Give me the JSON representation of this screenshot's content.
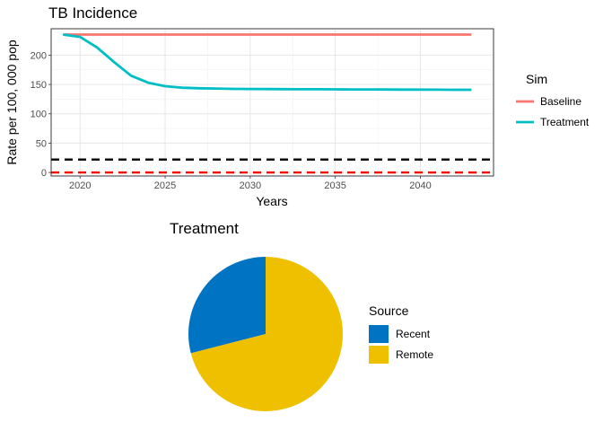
{
  "chart_data": [
    {
      "type": "line",
      "title": "TB Incidence",
      "xlabel": "Years",
      "ylabel": "Rate per 100, 000 pop",
      "xlim": [
        2018.3,
        2044.3
      ],
      "ylim": [
        -6,
        245
      ],
      "x_ticks": [
        2020,
        2025,
        2030,
        2035,
        2040
      ],
      "y_ticks": [
        0,
        50,
        100,
        150,
        200
      ],
      "grid": true,
      "legend": {
        "title": "Sim",
        "position": "right"
      },
      "series": [
        {
          "name": "Baseline",
          "color": "#F8766D",
          "x": [
            2019,
            2043
          ],
          "y": [
            235,
            235
          ]
        },
        {
          "name": "Treatment",
          "color": "#00BFC4",
          "x": [
            2019,
            2020,
            2021,
            2022,
            2023,
            2024,
            2025,
            2026,
            2027,
            2028,
            2029,
            2030,
            2031,
            2032,
            2033,
            2034,
            2035,
            2036,
            2037,
            2038,
            2039,
            2040,
            2041,
            2042,
            2043
          ],
          "y": [
            235,
            231,
            213,
            188,
            165,
            153,
            147,
            144.5,
            143.5,
            143,
            142.5,
            142.3,
            142.1,
            142,
            141.9,
            141.8,
            141.7,
            141.6,
            141.5,
            141.4,
            141.3,
            141.2,
            141.1,
            141,
            141
          ]
        }
      ],
      "reference_lines": [
        {
          "y": 22,
          "color": "#000000",
          "style": "dashed"
        },
        {
          "y": 0,
          "color": "#FF0000",
          "style": "dashed"
        }
      ]
    },
    {
      "type": "pie",
      "title": "Treatment",
      "legend": {
        "title": "Source",
        "position": "right"
      },
      "slices": [
        {
          "label": "Recent",
          "value": 0.29,
          "color": "#0073C2"
        },
        {
          "label": "Remote",
          "value": 0.71,
          "color": "#EFC000"
        }
      ]
    }
  ]
}
